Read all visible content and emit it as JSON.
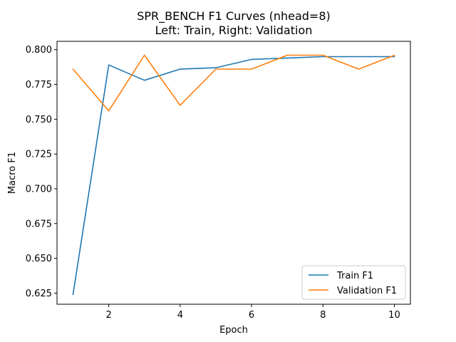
{
  "chart_data": {
    "type": "line",
    "title": "SPR_BENCH F1 Curves (nhead=8)",
    "subtitle": "Left: Train, Right: Validation",
    "xlabel": "Epoch",
    "ylabel": "Macro F1",
    "xlim": [
      0.55,
      10.45
    ],
    "ylim": [
      0.617,
      0.806
    ],
    "xticks": [
      2,
      4,
      6,
      8,
      10
    ],
    "yticks": [
      0.625,
      0.65,
      0.675,
      0.7,
      0.725,
      0.75,
      0.775,
      0.8
    ],
    "ytick_labels": [
      "0.625",
      "0.650",
      "0.675",
      "0.700",
      "0.725",
      "0.750",
      "0.775",
      "0.800"
    ],
    "grid": false,
    "legend_position": "lower-right",
    "x": [
      1,
      2,
      3,
      4,
      5,
      6,
      7,
      8,
      9,
      10
    ],
    "series": [
      {
        "name": "Train F1",
        "color": "#1f77b4",
        "values": [
          0.624,
          0.789,
          0.778,
          0.786,
          0.787,
          0.793,
          0.794,
          0.795,
          0.795,
          0.795
        ]
      },
      {
        "name": "Validation F1",
        "color": "#ff7f0e",
        "values": [
          0.786,
          0.756,
          0.796,
          0.76,
          0.786,
          0.786,
          0.796,
          0.796,
          0.786,
          0.796
        ]
      }
    ]
  }
}
